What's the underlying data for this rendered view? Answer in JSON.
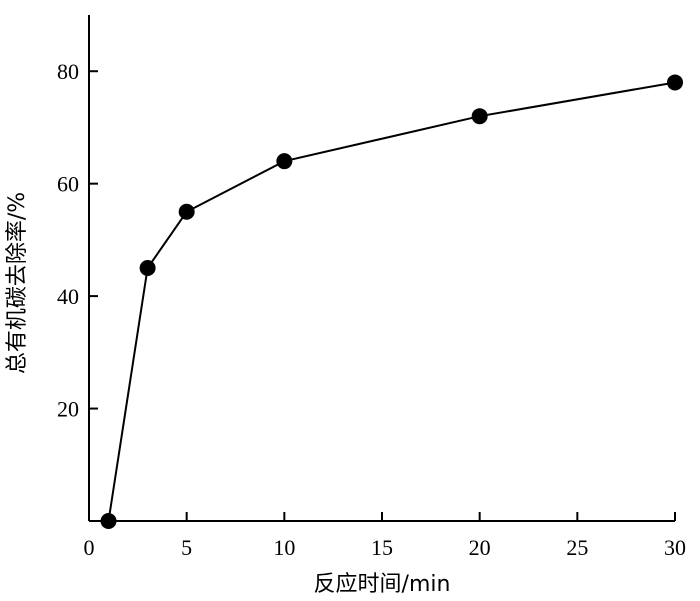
{
  "chart_data": {
    "type": "line",
    "title": "",
    "xlabel": "反应时间/min",
    "ylabel": "总有机碳去除率/%",
    "xlim": [
      0,
      30
    ],
    "ylim": [
      0,
      90
    ],
    "x_ticks": [
      0,
      5,
      10,
      15,
      20,
      25,
      30
    ],
    "y_ticks": [
      20,
      40,
      60,
      80
    ],
    "x_tick_labels": [
      "0",
      "5",
      "10",
      "15",
      "20",
      "25",
      "30"
    ],
    "y_tick_labels": [
      "20",
      "40",
      "60",
      "80"
    ],
    "grid": false,
    "legend": "none",
    "series": [
      {
        "x": [
          1,
          3,
          5,
          10,
          20,
          30
        ],
        "y": [
          0,
          45,
          55,
          64,
          72,
          78
        ],
        "marker": "circle",
        "color": "#000000"
      }
    ]
  }
}
